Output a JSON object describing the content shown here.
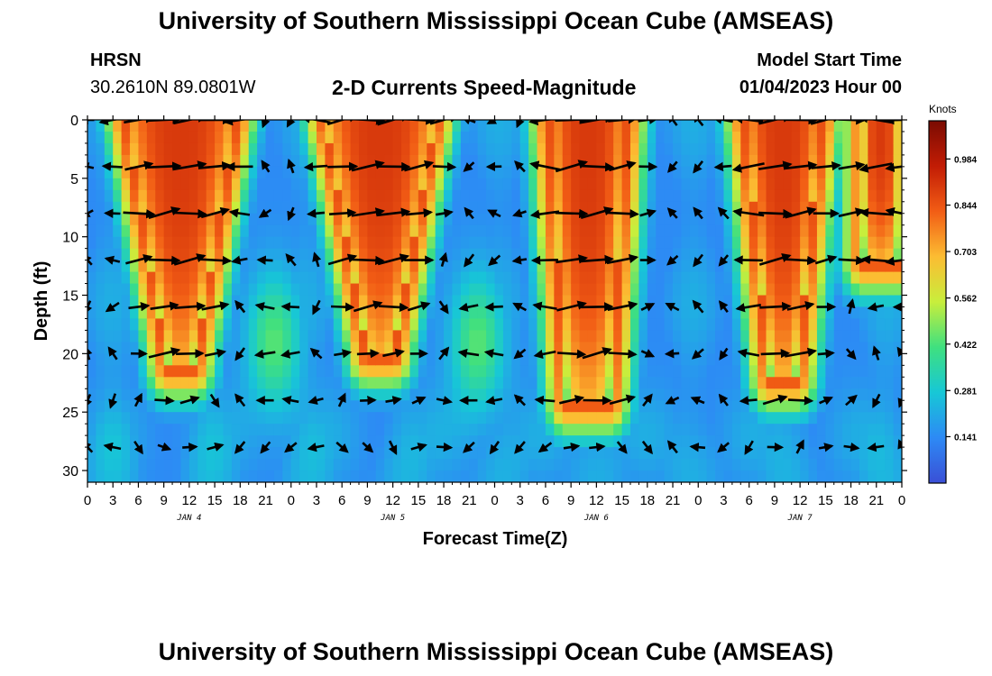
{
  "header": {
    "title": "University of Southern Mississippi Ocean Cube (AMSEAS)",
    "station": "HRSN",
    "coords": "30.2610N  89.0801W",
    "chart_title": "2-D Currents Speed-Magnitude",
    "model_label": "Model Start Time",
    "model_date": "01/04/2023 Hour 00"
  },
  "footer": {
    "title": "University of Southern Mississippi Ocean Cube (AMSEAS)"
  },
  "colors": {
    "colormap": [
      "#3a4fd6",
      "#2d8af5",
      "#17c7d6",
      "#3fe07f",
      "#c8ee3c",
      "#fcbc32",
      "#f25d15",
      "#c21c05",
      "#7a0b02"
    ]
  },
  "chart_data": {
    "type": "heatmap",
    "title": "2-D Currents Speed-Magnitude",
    "xlabel": "Forecast Time(Z)",
    "ylabel": "Depth (ft)",
    "x_ticks": [
      "0",
      "3",
      "6",
      "9",
      "12",
      "15",
      "18",
      "21",
      "0",
      "3",
      "6",
      "9",
      "12",
      "15",
      "18",
      "21",
      "0",
      "3",
      "6",
      "9",
      "12",
      "15",
      "18",
      "21",
      "0",
      "3",
      "6",
      "9",
      "12",
      "15",
      "18",
      "21",
      "0"
    ],
    "day_labels": [
      "JAN 4",
      "JAN 5",
      "JAN 6",
      "JAN 7"
    ],
    "x_range_hours": [
      0,
      96
    ],
    "y_ticks": [
      0,
      5,
      10,
      15,
      20,
      25,
      30
    ],
    "y_range": [
      0,
      31
    ],
    "colorbar": {
      "label": "Knots",
      "ticks": [
        "0.984",
        "0.844",
        "0.703",
        "0.562",
        "0.422",
        "0.281",
        "0.141"
      ],
      "tick_values": [
        0.984,
        0.844,
        0.703,
        0.562,
        0.422,
        0.281,
        0.141
      ],
      "range": [
        0,
        1.1
      ]
    },
    "high_speed_cores": [
      {
        "center_hour": 11,
        "top_halfwidth": 6.5,
        "bottom_halfwidth": 1.5,
        "bottom_depth": 21
      },
      {
        "center_hour": 34.5,
        "top_halfwidth": 6.5,
        "bottom_halfwidth": 1.5,
        "bottom_depth": 20
      },
      {
        "center_hour": 59,
        "top_halfwidth": 4.5,
        "bottom_halfwidth": 2.5,
        "bottom_depth": 24
      },
      {
        "center_hour": 82,
        "top_halfwidth": 4.5,
        "bottom_halfwidth": 1.5,
        "bottom_depth": 22
      },
      {
        "center_hour": 93.5,
        "top_halfwidth": 2,
        "bottom_halfwidth": 2,
        "bottom_depth": 12
      }
    ],
    "vector_depths_ft": [
      0,
      4,
      8,
      12,
      16,
      20,
      24,
      28
    ],
    "vector_hour_step": 3,
    "vector_direction_note": "flood east at surface, ebb west at depth"
  }
}
